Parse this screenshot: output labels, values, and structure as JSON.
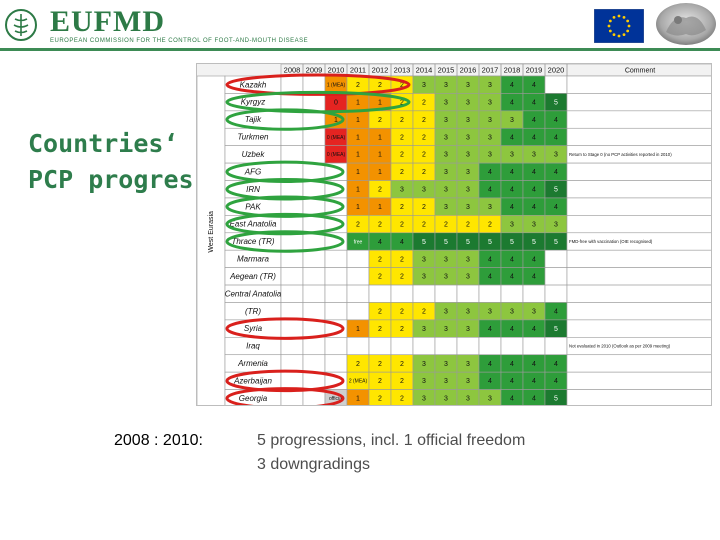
{
  "header": {
    "logo_text": "EUFMD",
    "logo_subtitle": "EUROPEAN COMMISSION FOR THE CONTROL OF FOOT-AND-MOUTH DISEASE",
    "colors": {
      "brand_green": "#2d7a46",
      "eu_blue": "#003399",
      "eu_gold": "#ffcc00"
    },
    "icons": [
      "fao-emblem-icon",
      "eu-flag-icon",
      "coin-image-icon"
    ]
  },
  "title": {
    "line1": "Countries‘",
    "line2": "PCP progres"
  },
  "table": {
    "region_label": "West Eurasia",
    "comment_header": "Comment",
    "years": [
      "2008",
      "2009",
      "2010",
      "2011",
      "2012",
      "2013",
      "2014",
      "2015",
      "2016",
      "2017",
      "2018",
      "2019",
      "2020"
    ],
    "rows": [
      {
        "country": "Kazakh",
        "cells": [
          "",
          "",
          "1 (MEA)",
          "2",
          "2",
          "2",
          "3",
          "3",
          "3",
          "3",
          "4",
          "4",
          ""
        ],
        "comment": ""
      },
      {
        "country": "Kyrgyz",
        "cells": [
          "",
          "",
          "0",
          "1",
          "1",
          "2",
          "2",
          "3",
          "3",
          "3",
          "4",
          "4",
          "5"
        ],
        "comment": ""
      },
      {
        "country": "Tajik",
        "cells": [
          "",
          "",
          "1",
          "1",
          "2",
          "2",
          "2",
          "3",
          "3",
          "3",
          "3",
          "4",
          "4"
        ],
        "comment": ""
      },
      {
        "country": "Turkmen",
        "cells": [
          "",
          "",
          "0 (MEA)",
          "1",
          "1",
          "2",
          "2",
          "3",
          "3",
          "3",
          "4",
          "4",
          "4"
        ],
        "comment": ""
      },
      {
        "country": "Uzbek",
        "cells": [
          "",
          "",
          "0 (MEA)",
          "1",
          "1",
          "2",
          "2",
          "3",
          "3",
          "3",
          "3",
          "3",
          "3"
        ],
        "comment": "Return to Stage 0 (no PCP activities reported in 2010)"
      },
      {
        "country": "AFG",
        "cells": [
          "",
          "",
          "",
          "1",
          "1",
          "2",
          "2",
          "3",
          "3",
          "4",
          "4",
          "4",
          "4"
        ],
        "comment": ""
      },
      {
        "country": "IRN",
        "cells": [
          "",
          "",
          "",
          "1",
          "2",
          "3",
          "3",
          "3",
          "3",
          "4",
          "4",
          "4",
          "5"
        ],
        "comment": ""
      },
      {
        "country": "PAK",
        "cells": [
          "",
          "",
          "",
          "1",
          "1",
          "2",
          "2",
          "3",
          "3",
          "3",
          "4",
          "4",
          "4"
        ],
        "comment": ""
      },
      {
        "country": "East Anatolia",
        "cells": [
          "",
          "",
          "",
          "2",
          "2",
          "2",
          "2",
          "2",
          "2",
          "2",
          "3",
          "3",
          "3"
        ],
        "comment": ""
      },
      {
        "country": "Thrace (TR)",
        "cells": [
          "",
          "",
          "",
          "free",
          "4",
          "4",
          "5",
          "5",
          "5",
          "5",
          "5",
          "5",
          "5"
        ],
        "comment": "FMD-free with vaccination (OIE recognised)"
      },
      {
        "country": "Marmara",
        "cells": [
          "",
          "",
          "",
          "",
          "2",
          "2",
          "3",
          "3",
          "3",
          "4",
          "4",
          "4",
          ""
        ],
        "comment": ""
      },
      {
        "country": "Aegean (TR)",
        "cells": [
          "",
          "",
          "",
          "",
          "2",
          "2",
          "3",
          "3",
          "3",
          "4",
          "4",
          "4",
          ""
        ],
        "comment": ""
      },
      {
        "country": "Central Anatolia",
        "cells": [
          "",
          "",
          "",
          "",
          "",
          "",
          "",
          "",
          "",
          "",
          "",
          "",
          ""
        ],
        "comment": ""
      },
      {
        "country": "(TR)",
        "cells": [
          "",
          "",
          "",
          "",
          "2",
          "2",
          "2",
          "3",
          "3",
          "3",
          "3",
          "3",
          "4"
        ],
        "comment": ""
      },
      {
        "country": "Syria",
        "cells": [
          "",
          "",
          "",
          "1",
          "2",
          "2",
          "3",
          "3",
          "3",
          "4",
          "4",
          "4",
          "5"
        ],
        "comment": ""
      },
      {
        "country": "Iraq",
        "cells": [
          "",
          "",
          "",
          "",
          "",
          "",
          "",
          "",
          "",
          "",
          "",
          "",
          ""
        ],
        "comment": "Not evaluated in 2010 (Outlook as per 2009 meeting)"
      },
      {
        "country": "Armenia",
        "cells": [
          "",
          "",
          "",
          "2",
          "2",
          "2",
          "3",
          "3",
          "3",
          "4",
          "4",
          "4",
          "4"
        ],
        "comment": ""
      },
      {
        "country": "Azerbaijan",
        "cells": [
          "",
          "",
          "",
          "2 (MEA)",
          "2",
          "2",
          "3",
          "3",
          "3",
          "4",
          "4",
          "4",
          "4"
        ],
        "comment": ""
      },
      {
        "country": "Georgia",
        "cells": [
          "",
          "",
          "official",
          "1",
          "2",
          "2",
          "3",
          "3",
          "3",
          "3",
          "4",
          "4",
          "5"
        ],
        "comment": ""
      }
    ],
    "stage_colors": {
      "0": "#e52421",
      "1": "#f39200",
      "2": "#ffe600",
      "3": "#8dc63f",
      "4": "#2e9d3a",
      "5": "#1c7a30",
      "grey": "#cfcfcf",
      "empty": "#ffffff"
    },
    "highlight_colors": {
      "red": "#d9201c",
      "green": "#2fa33f"
    }
  },
  "summary": {
    "label": "2008 : 2010:",
    "line1": "5 progressions, incl. 1 official freedom",
    "line2": "3 downgradings"
  }
}
